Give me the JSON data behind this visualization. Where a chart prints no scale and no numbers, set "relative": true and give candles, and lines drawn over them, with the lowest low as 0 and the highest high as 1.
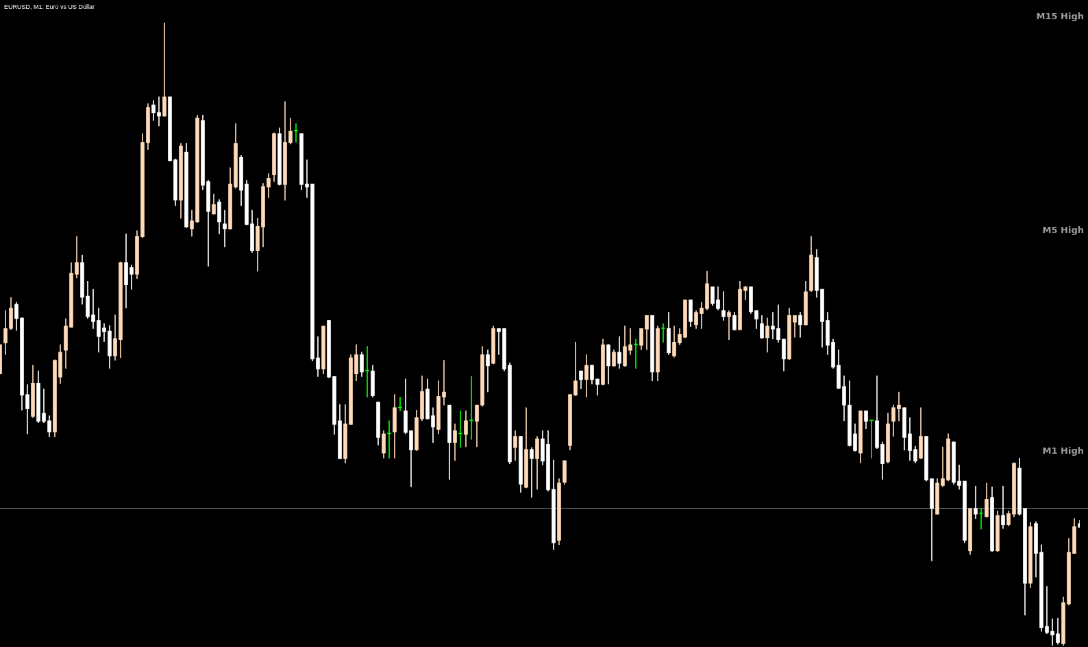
{
  "chart_data": {
    "type": "candlestick",
    "title": "EURUSD, M1: Euro vs US Dollar",
    "relative": true,
    "tick_labels": false,
    "categories": [
      null,
      null,
      null,
      null,
      null,
      null,
      null,
      null,
      null,
      null,
      null,
      null,
      null,
      null,
      null,
      null,
      null,
      null,
      null,
      null,
      null,
      null,
      null,
      null,
      null,
      null,
      null,
      null,
      null,
      null,
      null,
      null,
      null,
      null,
      null,
      null,
      null,
      null,
      null,
      null,
      null,
      null,
      null,
      null,
      null,
      null,
      null,
      null,
      null,
      null,
      null,
      null,
      null,
      null,
      null,
      null,
      null,
      null,
      null,
      null,
      null,
      null,
      null,
      null,
      null,
      null,
      null,
      null,
      null,
      null,
      null,
      null,
      null,
      null,
      null,
      null,
      null,
      null,
      null,
      null,
      null,
      null,
      null,
      null,
      null,
      null,
      null,
      null,
      null,
      null,
      null,
      null,
      null,
      null,
      null,
      null,
      null,
      null,
      null,
      null,
      null,
      null,
      null,
      null,
      null,
      null,
      null,
      null,
      null,
      null,
      null,
      null,
      null,
      null,
      null,
      null,
      null,
      null,
      null,
      null,
      null,
      null,
      null,
      null,
      null,
      null,
      null,
      null,
      null,
      null,
      null,
      null,
      null,
      null,
      null,
      null,
      null,
      null,
      null,
      null,
      null,
      null,
      null,
      null,
      null,
      null,
      null,
      null,
      null,
      null,
      null,
      null,
      null,
      null,
      null,
      null,
      null,
      null,
      null,
      null,
      null,
      null,
      null,
      null,
      null,
      null,
      null,
      null,
      null,
      null,
      null,
      null,
      null,
      null,
      null,
      null,
      null,
      null,
      null,
      null,
      null,
      null,
      null,
      null,
      null,
      null,
      null,
      null,
      null,
      null,
      null,
      null,
      null,
      null,
      null,
      null,
      null,
      null
    ],
    "ohlc": [
      [
        0.436,
        0.483,
        0.436,
        0.483
      ],
      [
        0.486,
        0.538,
        0.467,
        0.509
      ],
      [
        0.509,
        0.559,
        0.507,
        0.542
      ],
      [
        0.548,
        0.551,
        0.506,
        0.525
      ],
      [
        0.526,
        0.526,
        0.378,
        0.402
      ],
      [
        0.403,
        0.419,
        0.34,
        0.38
      ],
      [
        0.368,
        0.45,
        0.366,
        0.421
      ],
      [
        0.421,
        0.441,
        0.358,
        0.36
      ],
      [
        0.373,
        0.412,
        0.358,
        0.36
      ],
      [
        0.361,
        0.369,
        0.335,
        0.343
      ],
      [
        0.343,
        0.459,
        0.335,
        0.458
      ],
      [
        0.431,
        0.483,
        0.421,
        0.471
      ],
      [
        0.474,
        0.525,
        0.445,
        0.513
      ],
      [
        0.511,
        0.615,
        0.511,
        0.598
      ],
      [
        0.596,
        0.657,
        0.59,
        0.615
      ],
      [
        0.615,
        0.627,
        0.548,
        0.559
      ],
      [
        0.561,
        0.585,
        0.525,
        0.528
      ],
      [
        0.531,
        0.572,
        0.509,
        0.52
      ],
      [
        0.522,
        0.542,
        0.471,
        0.496
      ],
      [
        0.51,
        0.517,
        0.488,
        0.504
      ],
      [
        0.505,
        0.514,
        0.445,
        0.465
      ],
      [
        0.465,
        0.531,
        0.458,
        0.493
      ],
      [
        0.491,
        0.616,
        0.462,
        0.615
      ],
      [
        0.615,
        0.661,
        0.542,
        0.579
      ],
      [
        0.607,
        0.611,
        0.572,
        0.596
      ],
      [
        0.596,
        0.666,
        0.589,
        0.657
      ],
      [
        0.656,
        0.822,
        0.655,
        0.808
      ],
      [
        0.807,
        0.87,
        0.796,
        0.864
      ],
      [
        0.868,
        0.875,
        0.843,
        0.855
      ],
      [
        0.856,
        0.881,
        0.834,
        0.85
      ],
      [
        0.85,
        1,
        0.849,
        0.881
      ],
      [
        0.881,
        0.881,
        0.778,
        0.778
      ],
      [
        0.78,
        0.781,
        0.706,
        0.715
      ],
      [
        0.715,
        0.806,
        0.686,
        0.802
      ],
      [
        0.792,
        0.806,
        0.671,
        0.672
      ],
      [
        0.669,
        0.699,
        0.657,
        0.682
      ],
      [
        0.68,
        0.851,
        0.679,
        0.847
      ],
      [
        0.843,
        0.851,
        0.732,
        0.739
      ],
      [
        0.745,
        0.747,
        0.609,
        0.697
      ],
      [
        0.693,
        0.725,
        0.692,
        0.708
      ],
      [
        0.712,
        0.716,
        0.661,
        0.68
      ],
      [
        0.677,
        0.699,
        0.64,
        0.669
      ],
      [
        0.669,
        0.767,
        0.668,
        0.741
      ],
      [
        0.736,
        0.838,
        0.734,
        0.806
      ],
      [
        0.784,
        0.787,
        0.706,
        0.731
      ],
      [
        0.741,
        0.747,
        0.675,
        0.676
      ],
      [
        0.677,
        0.699,
        0.631,
        0.634
      ],
      [
        0.634,
        0.686,
        0.601,
        0.673
      ],
      [
        0.672,
        0.742,
        0.64,
        0.737
      ],
      [
        0.736,
        0.758,
        0.719,
        0.75
      ],
      [
        0.756,
        0.823,
        0.745,
        0.822
      ],
      [
        0.822,
        0.831,
        0.739,
        0.74
      ],
      [
        0.74,
        0.873,
        0.715,
        0.808
      ],
      [
        0.807,
        0.847,
        0.805,
        0.826
      ],
      [
        0.826,
        0.838,
        0.808,
        0.826
      ],
      [
        0.822,
        0.822,
        0.732,
        0.74
      ],
      [
        0.741,
        0.78,
        0.719,
        0.736
      ],
      [
        0.741,
        0.741,
        0.457,
        0.46
      ],
      [
        0.462,
        0.496,
        0.432,
        0.444
      ],
      [
        0.444,
        0.513,
        0.436,
        0.513
      ],
      [
        0.522,
        0.522,
        0.43,
        0.431
      ],
      [
        0.432,
        0.432,
        0.339,
        0.355
      ],
      [
        0.361,
        0.387,
        0.3,
        0.3
      ],
      [
        0.3,
        0.387,
        0.293,
        0.356
      ],
      [
        0.355,
        0.467,
        0.355,
        0.462
      ],
      [
        0.436,
        0.483,
        0.425,
        0.467
      ],
      [
        0.467,
        0.471,
        0.432,
        0.439
      ],
      [
        0.441,
        0.48,
        0.399,
        0.441
      ],
      [
        0.441,
        0.45,
        0.399,
        0.401
      ],
      [
        0.391,
        0.391,
        0.322,
        0.334
      ],
      [
        0.309,
        0.345,
        0.301,
        0.34
      ],
      [
        0.34,
        0.361,
        0.301,
        0.34
      ],
      [
        0.343,
        0.403,
        0.301,
        0.382
      ],
      [
        0.382,
        0.399,
        0.377,
        0.382
      ],
      [
        0.377,
        0.428,
        0.34,
        0.342
      ],
      [
        0.345,
        0.345,
        0.255,
        0.314
      ],
      [
        0.314,
        0.378,
        0.313,
        0.366
      ],
      [
        0.364,
        0.433,
        0.361,
        0.408
      ],
      [
        0.412,
        0.428,
        0.363,
        0.364
      ],
      [
        0.369,
        0.382,
        0.326,
        0.351
      ],
      [
        0.347,
        0.425,
        0.34,
        0.4
      ],
      [
        0.399,
        0.458,
        0.386,
        0.407
      ],
      [
        0.386,
        0.386,
        0.267,
        0.326
      ],
      [
        0.326,
        0.356,
        0.297,
        0.345
      ],
      [
        0.34,
        0.377,
        0.318,
        0.34
      ],
      [
        0.339,
        0.377,
        0.319,
        0.361
      ],
      [
        0.361,
        0.432,
        0.331,
        0.361
      ],
      [
        0.36,
        0.386,
        0.319,
        0.386
      ],
      [
        0.386,
        0.48,
        0.384,
        0.467
      ],
      [
        0.467,
        0.475,
        0.407,
        0.449
      ],
      [
        0.453,
        0.513,
        0.452,
        0.509
      ],
      [
        0.509,
        0.509,
        0.467,
        0.504
      ],
      [
        0.509,
        0.509,
        0.441,
        0.444
      ],
      [
        0.45,
        0.454,
        0.292,
        0.295
      ],
      [
        0.318,
        0.345,
        0.297,
        0.336
      ],
      [
        0.336,
        0.336,
        0.246,
        0.259
      ],
      [
        0.254,
        0.382,
        0.253,
        0.315
      ],
      [
        0.315,
        0.318,
        0.238,
        0.3
      ],
      [
        0.3,
        0.336,
        0.251,
        0.332
      ],
      [
        0.332,
        0.345,
        0.29,
        0.296
      ],
      [
        0.323,
        0.345,
        0.248,
        0.25
      ],
      [
        0.251,
        0.298,
        0.154,
        0.165
      ],
      [
        0.169,
        0.268,
        0.162,
        0.261
      ],
      [
        0.262,
        0.297,
        0.259,
        0.297
      ],
      [
        0.321,
        0.403,
        0.314,
        0.403
      ],
      [
        0.402,
        0.487,
        0.401,
        0.425
      ],
      [
        0.441,
        0.441,
        0.412,
        0.427
      ],
      [
        0.427,
        0.467,
        0.399,
        0.45
      ],
      [
        0.45,
        0.45,
        0.42,
        0.427
      ],
      [
        0.428,
        0.428,
        0.402,
        0.419
      ],
      [
        0.419,
        0.492,
        0.418,
        0.483
      ],
      [
        0.483,
        0.483,
        0.42,
        0.449
      ],
      [
        0.449,
        0.475,
        0.448,
        0.471
      ],
      [
        0.471,
        0.496,
        0.445,
        0.453
      ],
      [
        0.449,
        0.513,
        0.448,
        0.48
      ],
      [
        0.474,
        0.509,
        0.467,
        0.483
      ],
      [
        0.483,
        0.492,
        0.445,
        0.483
      ],
      [
        0.482,
        0.509,
        0.475,
        0.509
      ],
      [
        0.508,
        0.53,
        0.475,
        0.53
      ],
      [
        0.53,
        0.53,
        0.425,
        0.439
      ],
      [
        0.439,
        0.513,
        0.425,
        0.509
      ],
      [
        0.509,
        0.517,
        0.487,
        0.509
      ],
      [
        0.509,
        0.535,
        0.467,
        0.47
      ],
      [
        0.465,
        0.513,
        0.463,
        0.487
      ],
      [
        0.486,
        0.509,
        0.483,
        0.5
      ],
      [
        0.495,
        0.555,
        0.494,
        0.555
      ],
      [
        0.555,
        0.555,
        0.512,
        0.52
      ],
      [
        0.515,
        0.538,
        0.509,
        0.535
      ],
      [
        0.533,
        0.551,
        0.509,
        0.542
      ],
      [
        0.541,
        0.601,
        0.539,
        0.581
      ],
      [
        0.576,
        0.576,
        0.546,
        0.549
      ],
      [
        0.555,
        0.576,
        0.539,
        0.541
      ],
      [
        0.538,
        0.568,
        0.522,
        0.528
      ],
      [
        0.528,
        0.538,
        0.491,
        0.535
      ],
      [
        0.53,
        0.535,
        0.506,
        0.507
      ],
      [
        0.507,
        0.585,
        0.507,
        0.572
      ],
      [
        0.57,
        0.577,
        0.555,
        0.576
      ],
      [
        0.576,
        0.576,
        0.533,
        0.536
      ],
      [
        0.538,
        0.538,
        0.509,
        0.524
      ],
      [
        0.517,
        0.53,
        0.493,
        0.494
      ],
      [
        0.494,
        0.526,
        0.471,
        0.513
      ],
      [
        0.513,
        0.535,
        0.492,
        0.508
      ],
      [
        0.509,
        0.547,
        0.487,
        0.491
      ],
      [
        0.492,
        0.492,
        0.441,
        0.46
      ],
      [
        0.46,
        0.542,
        0.459,
        0.53
      ],
      [
        0.519,
        0.53,
        0.495,
        0.53
      ],
      [
        0.53,
        0.535,
        0.495,
        0.515
      ],
      [
        0.515,
        0.585,
        0.514,
        0.568
      ],
      [
        0.57,
        0.657,
        0.568,
        0.627
      ],
      [
        0.623,
        0.636,
        0.559,
        0.57
      ],
      [
        0.572,
        0.572,
        0.479,
        0.52
      ],
      [
        0.522,
        0.535,
        0.467,
        0.482
      ],
      [
        0.487,
        0.492,
        0.445,
        0.447
      ],
      [
        0.45,
        0.475,
        0.412,
        0.413
      ],
      [
        0.416,
        0.433,
        0.361,
        0.386
      ],
      [
        0.386,
        0.425,
        0.32,
        0.321
      ],
      [
        0.34,
        0.356,
        0.312,
        0.313
      ],
      [
        0.309,
        0.377,
        0.293,
        0.377
      ],
      [
        0.377,
        0.377,
        0.348,
        0.36
      ],
      [
        0.361,
        0.361,
        0.301,
        0.361
      ],
      [
        0.361,
        0.433,
        0.316,
        0.318
      ],
      [
        0.323,
        0.327,
        0.267,
        0.292
      ],
      [
        0.295,
        0.373,
        0.293,
        0.356
      ],
      [
        0.36,
        0.386,
        0.336,
        0.382
      ],
      [
        0.38,
        0.407,
        0.361,
        0.386
      ],
      [
        0.382,
        0.382,
        0.314,
        0.334
      ],
      [
        0.34,
        0.366,
        0.297,
        0.313
      ],
      [
        0.315,
        0.32,
        0.293,
        0.296
      ],
      [
        0.301,
        0.382,
        0.3,
        0.336
      ],
      [
        0.336,
        0.336,
        0.264,
        0.266
      ],
      [
        0.268,
        0.268,
        0.136,
        0.22
      ],
      [
        0.211,
        0.268,
        0.211,
        0.261
      ],
      [
        0.257,
        0.319,
        0.255,
        0.268
      ],
      [
        0.266,
        0.34,
        0.264,
        0.332
      ],
      [
        0.327,
        0.327,
        0.259,
        0.262
      ],
      [
        0.264,
        0.29,
        0.251,
        0.257
      ],
      [
        0.264,
        0.264,
        0.165,
        0.169
      ],
      [
        0.152,
        0.22,
        0.146,
        0.22
      ],
      [
        0.22,
        0.256,
        0.204,
        0.211
      ],
      [
        0.212,
        0.22,
        0.187,
        0.212
      ],
      [
        0.207,
        0.261,
        0.206,
        0.235
      ],
      [
        0.238,
        0.255,
        0.151,
        0.152
      ],
      [
        0.152,
        0.216,
        0.151,
        0.209
      ],
      [
        0.209,
        0.256,
        0.188,
        0.194
      ],
      [
        0.194,
        0.216,
        0.192,
        0.212
      ],
      [
        0.211,
        0.293,
        0.207,
        0.293
      ],
      [
        0.285,
        0.301,
        0.209,
        0.211
      ],
      [
        0.22,
        0.22,
        0.049,
        0.1
      ],
      [
        0.1,
        0.198,
        0.093,
        0.191
      ],
      [
        0.196,
        0.199,
        0.11,
        0.148
      ],
      [
        0.15,
        0.162,
        0.023,
        0.029
      ],
      [
        0.031,
        0.095,
        0.019,
        0.021
      ],
      [
        0.023,
        0.043,
        0,
        0.017
      ],
      [
        0.019,
        0.044,
        0.002,
        0.005
      ],
      [
        0.003,
        0.078,
        0,
        0.069
      ],
      [
        0.067,
        0.172,
        0.065,
        0.15
      ],
      [
        0.148,
        0.204,
        0.148,
        0.191
      ],
      [
        0.196,
        0.201,
        0.19,
        0.19
      ]
    ],
    "colors": [
      "#ffdab9",
      "#ffdab9",
      "#ffdab9",
      "#ffffff",
      "#ffffff",
      "#ffffff",
      "#ffdab9",
      "#ffffff",
      "#ffffff",
      "#ffffff",
      "#ffdab9",
      "#ffdab9",
      "#ffdab9",
      "#ffdab9",
      "#ffdab9",
      "#ffffff",
      "#ffffff",
      "#ffffff",
      "#ffffff",
      "#ffffff",
      "#ffffff",
      "#ffdab9",
      "#ffdab9",
      "#ffffff",
      "#ffffff",
      "#ffdab9",
      "#ffdab9",
      "#ffdab9",
      "#ffffff",
      "#ffffff",
      "#ffdab9",
      "#ffffff",
      "#ffffff",
      "#ffdab9",
      "#ffffff",
      "#ffdab9",
      "#ffdab9",
      "#ffffff",
      "#ffffff",
      "#ffdab9",
      "#ffffff",
      "#ffffff",
      "#ffdab9",
      "#ffdab9",
      "#ffffff",
      "#ffffff",
      "#ffffff",
      "#ffdab9",
      "#ffdab9",
      "#ffdab9",
      "#ffdab9",
      "#ffffff",
      "#ffdab9",
      "#ffdab9",
      "#00ff00",
      "#ffffff",
      "#ffffff",
      "#ffffff",
      "#ffffff",
      "#ffdab9",
      "#ffffff",
      "#ffffff",
      "#ffffff",
      "#ffdab9",
      "#ffdab9",
      "#ffdab9",
      "#ffffff",
      "#00ff00",
      "#ffffff",
      "#ffffff",
      "#ffdab9",
      "#00ff00",
      "#ffdab9",
      "#00ff00",
      "#ffffff",
      "#ffffff",
      "#ffdab9",
      "#ffdab9",
      "#ffffff",
      "#ffffff",
      "#ffdab9",
      "#ffdab9",
      "#ffffff",
      "#ffdab9",
      "#00ff00",
      "#ffdab9",
      "#00ff00",
      "#ffdab9",
      "#ffdab9",
      "#ffffff",
      "#ffdab9",
      "#ffffff",
      "#ffffff",
      "#ffffff",
      "#ffdab9",
      "#ffffff",
      "#ffdab9",
      "#ffffff",
      "#ffdab9",
      "#ffffff",
      "#ffffff",
      "#ffffff",
      "#ffdab9",
      "#ffdab9",
      "#ffdab9",
      "#ffdab9",
      "#ffffff",
      "#ffdab9",
      "#ffffff",
      "#ffffff",
      "#ffdab9",
      "#ffffff",
      "#ffdab9",
      "#ffffff",
      "#ffdab9",
      "#ffdab9",
      "#00ff00",
      "#ffdab9",
      "#ffdab9",
      "#ffffff",
      "#ffdab9",
      "#00ff00",
      "#ffffff",
      "#ffdab9",
      "#ffdab9",
      "#ffdab9",
      "#ffffff",
      "#ffdab9",
      "#ffdab9",
      "#ffdab9",
      "#ffffff",
      "#ffffff",
      "#ffffff",
      "#ffdab9",
      "#ffffff",
      "#ffdab9",
      "#ffdab9",
      "#ffffff",
      "#ffffff",
      "#ffffff",
      "#ffdab9",
      "#ffffff",
      "#ffffff",
      "#ffffff",
      "#ffdab9",
      "#ffdab9",
      "#ffffff",
      "#ffdab9",
      "#ffdab9",
      "#ffffff",
      "#ffffff",
      "#ffffff",
      "#ffffff",
      "#ffffff",
      "#ffffff",
      "#ffffff",
      "#ffffff",
      "#ffdab9",
      "#ffffff",
      "#00ff00",
      "#ffffff",
      "#ffffff",
      "#ffdab9",
      "#ffdab9",
      "#ffdab9",
      "#ffffff",
      "#ffffff",
      "#ffffff",
      "#ffdab9",
      "#ffffff",
      "#ffffff",
      "#ffdab9",
      "#ffdab9",
      "#ffdab9",
      "#ffffff",
      "#ffffff",
      "#ffffff",
      "#ffdab9",
      "#ffffff",
      "#00ff00",
      "#ffdab9",
      "#ffffff",
      "#ffdab9",
      "#ffffff",
      "#ffdab9",
      "#ffdab9",
      "#ffffff",
      "#ffffff",
      "#ffdab9",
      "#ffffff",
      "#ffffff",
      "#ffffff",
      "#ffffff",
      "#ffffff",
      "#ffdab9",
      "#ffdab9",
      "#ffdab9",
      "#ffffff"
    ],
    "ref_lines": [
      {
        "axis": "y",
        "value": 0.221,
        "color": "#778899"
      }
    ],
    "annotations": [
      "M15 High",
      "M5 High",
      "M1 High"
    ]
  }
}
